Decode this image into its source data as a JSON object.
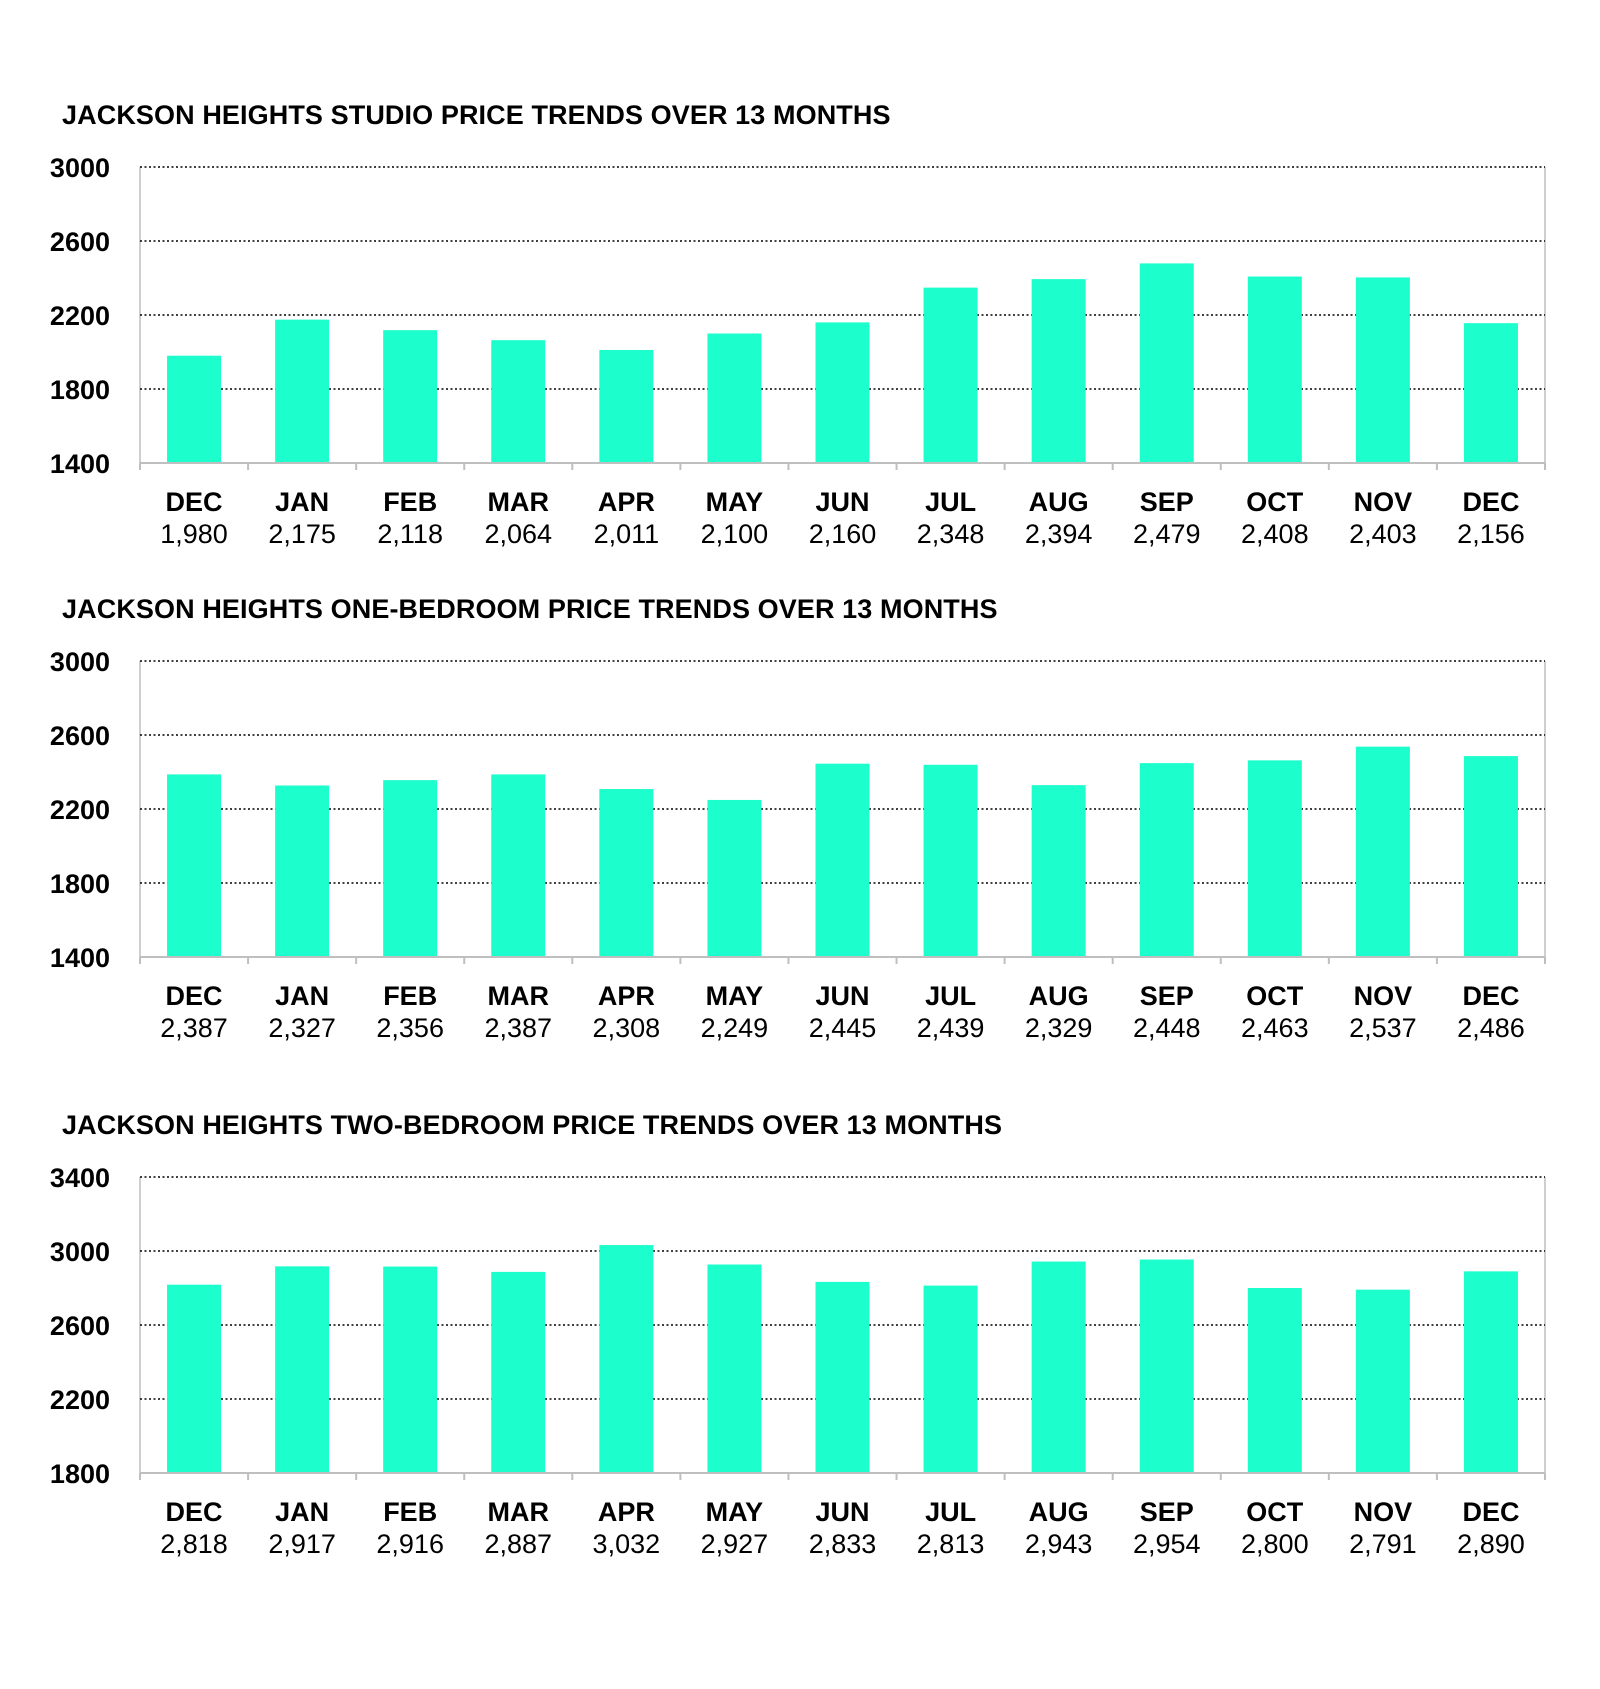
{
  "colors": {
    "bar": "#1CFFCC",
    "grid": "#000000",
    "axis": "#BFBFBF"
  },
  "chart_data": [
    {
      "type": "bar",
      "title": "JACKSON HEIGHTS STUDIO PRICE TRENDS OVER 13 MONTHS",
      "categories": [
        "DEC",
        "JAN",
        "FEB",
        "MAR",
        "APR",
        "MAY",
        "JUN",
        "JUL",
        "AUG",
        "SEP",
        "OCT",
        "NOV",
        "DEC"
      ],
      "values": [
        1980,
        2175,
        2118,
        2064,
        2011,
        2100,
        2160,
        2348,
        2394,
        2479,
        2408,
        2403,
        2156
      ],
      "value_labels": [
        "1,980",
        "2,175",
        "2,118",
        "2,064",
        "2,011",
        "2,100",
        "2,160",
        "2,348",
        "2,394",
        "2,479",
        "2,408",
        "2,403",
        "2,156"
      ],
      "yticks": [
        "3000",
        "2600",
        "2200",
        "1800",
        "1400"
      ],
      "ylim": [
        1400,
        3000
      ],
      "xlabel": "",
      "ylabel": "",
      "grid": true
    },
    {
      "type": "bar",
      "title": "JACKSON HEIGHTS ONE-BEDROOM PRICE TRENDS OVER 13 MONTHS",
      "categories": [
        "DEC",
        "JAN",
        "FEB",
        "MAR",
        "APR",
        "MAY",
        "JUN",
        "JUL",
        "AUG",
        "SEP",
        "OCT",
        "NOV",
        "DEC"
      ],
      "values": [
        2387,
        2327,
        2356,
        2387,
        2308,
        2249,
        2445,
        2439,
        2329,
        2448,
        2463,
        2537,
        2486
      ],
      "value_labels": [
        "2,387",
        "2,327",
        "2,356",
        "2,387",
        "2,308",
        "2,249",
        "2,445",
        "2,439",
        "2,329",
        "2,448",
        "2,463",
        "2,537",
        "2,486"
      ],
      "yticks": [
        "3000",
        "2600",
        "2200",
        "1800",
        "1400"
      ],
      "ylim": [
        1400,
        3000
      ],
      "xlabel": "",
      "ylabel": "",
      "grid": true
    },
    {
      "type": "bar",
      "title": "JACKSON HEIGHTS TWO-BEDROOM PRICE TRENDS OVER 13 MONTHS",
      "categories": [
        "DEC",
        "JAN",
        "FEB",
        "MAR",
        "APR",
        "MAY",
        "JUN",
        "JUL",
        "AUG",
        "SEP",
        "OCT",
        "NOV",
        "DEC"
      ],
      "values": [
        2818,
        2917,
        2916,
        2887,
        3032,
        2927,
        2833,
        2813,
        2943,
        2954,
        2800,
        2791,
        2890
      ],
      "value_labels": [
        "2,818",
        "2,917",
        "2,916",
        "2,887",
        "3,032",
        "2,927",
        "2,833",
        "2,813",
        "2,943",
        "2,954",
        "2,800",
        "2,791",
        "2,890"
      ],
      "yticks": [
        "3400",
        "3000",
        "2600",
        "2200",
        "1800"
      ],
      "ylim": [
        1800,
        3400
      ],
      "xlabel": "",
      "ylabel": "",
      "grid": true
    }
  ]
}
